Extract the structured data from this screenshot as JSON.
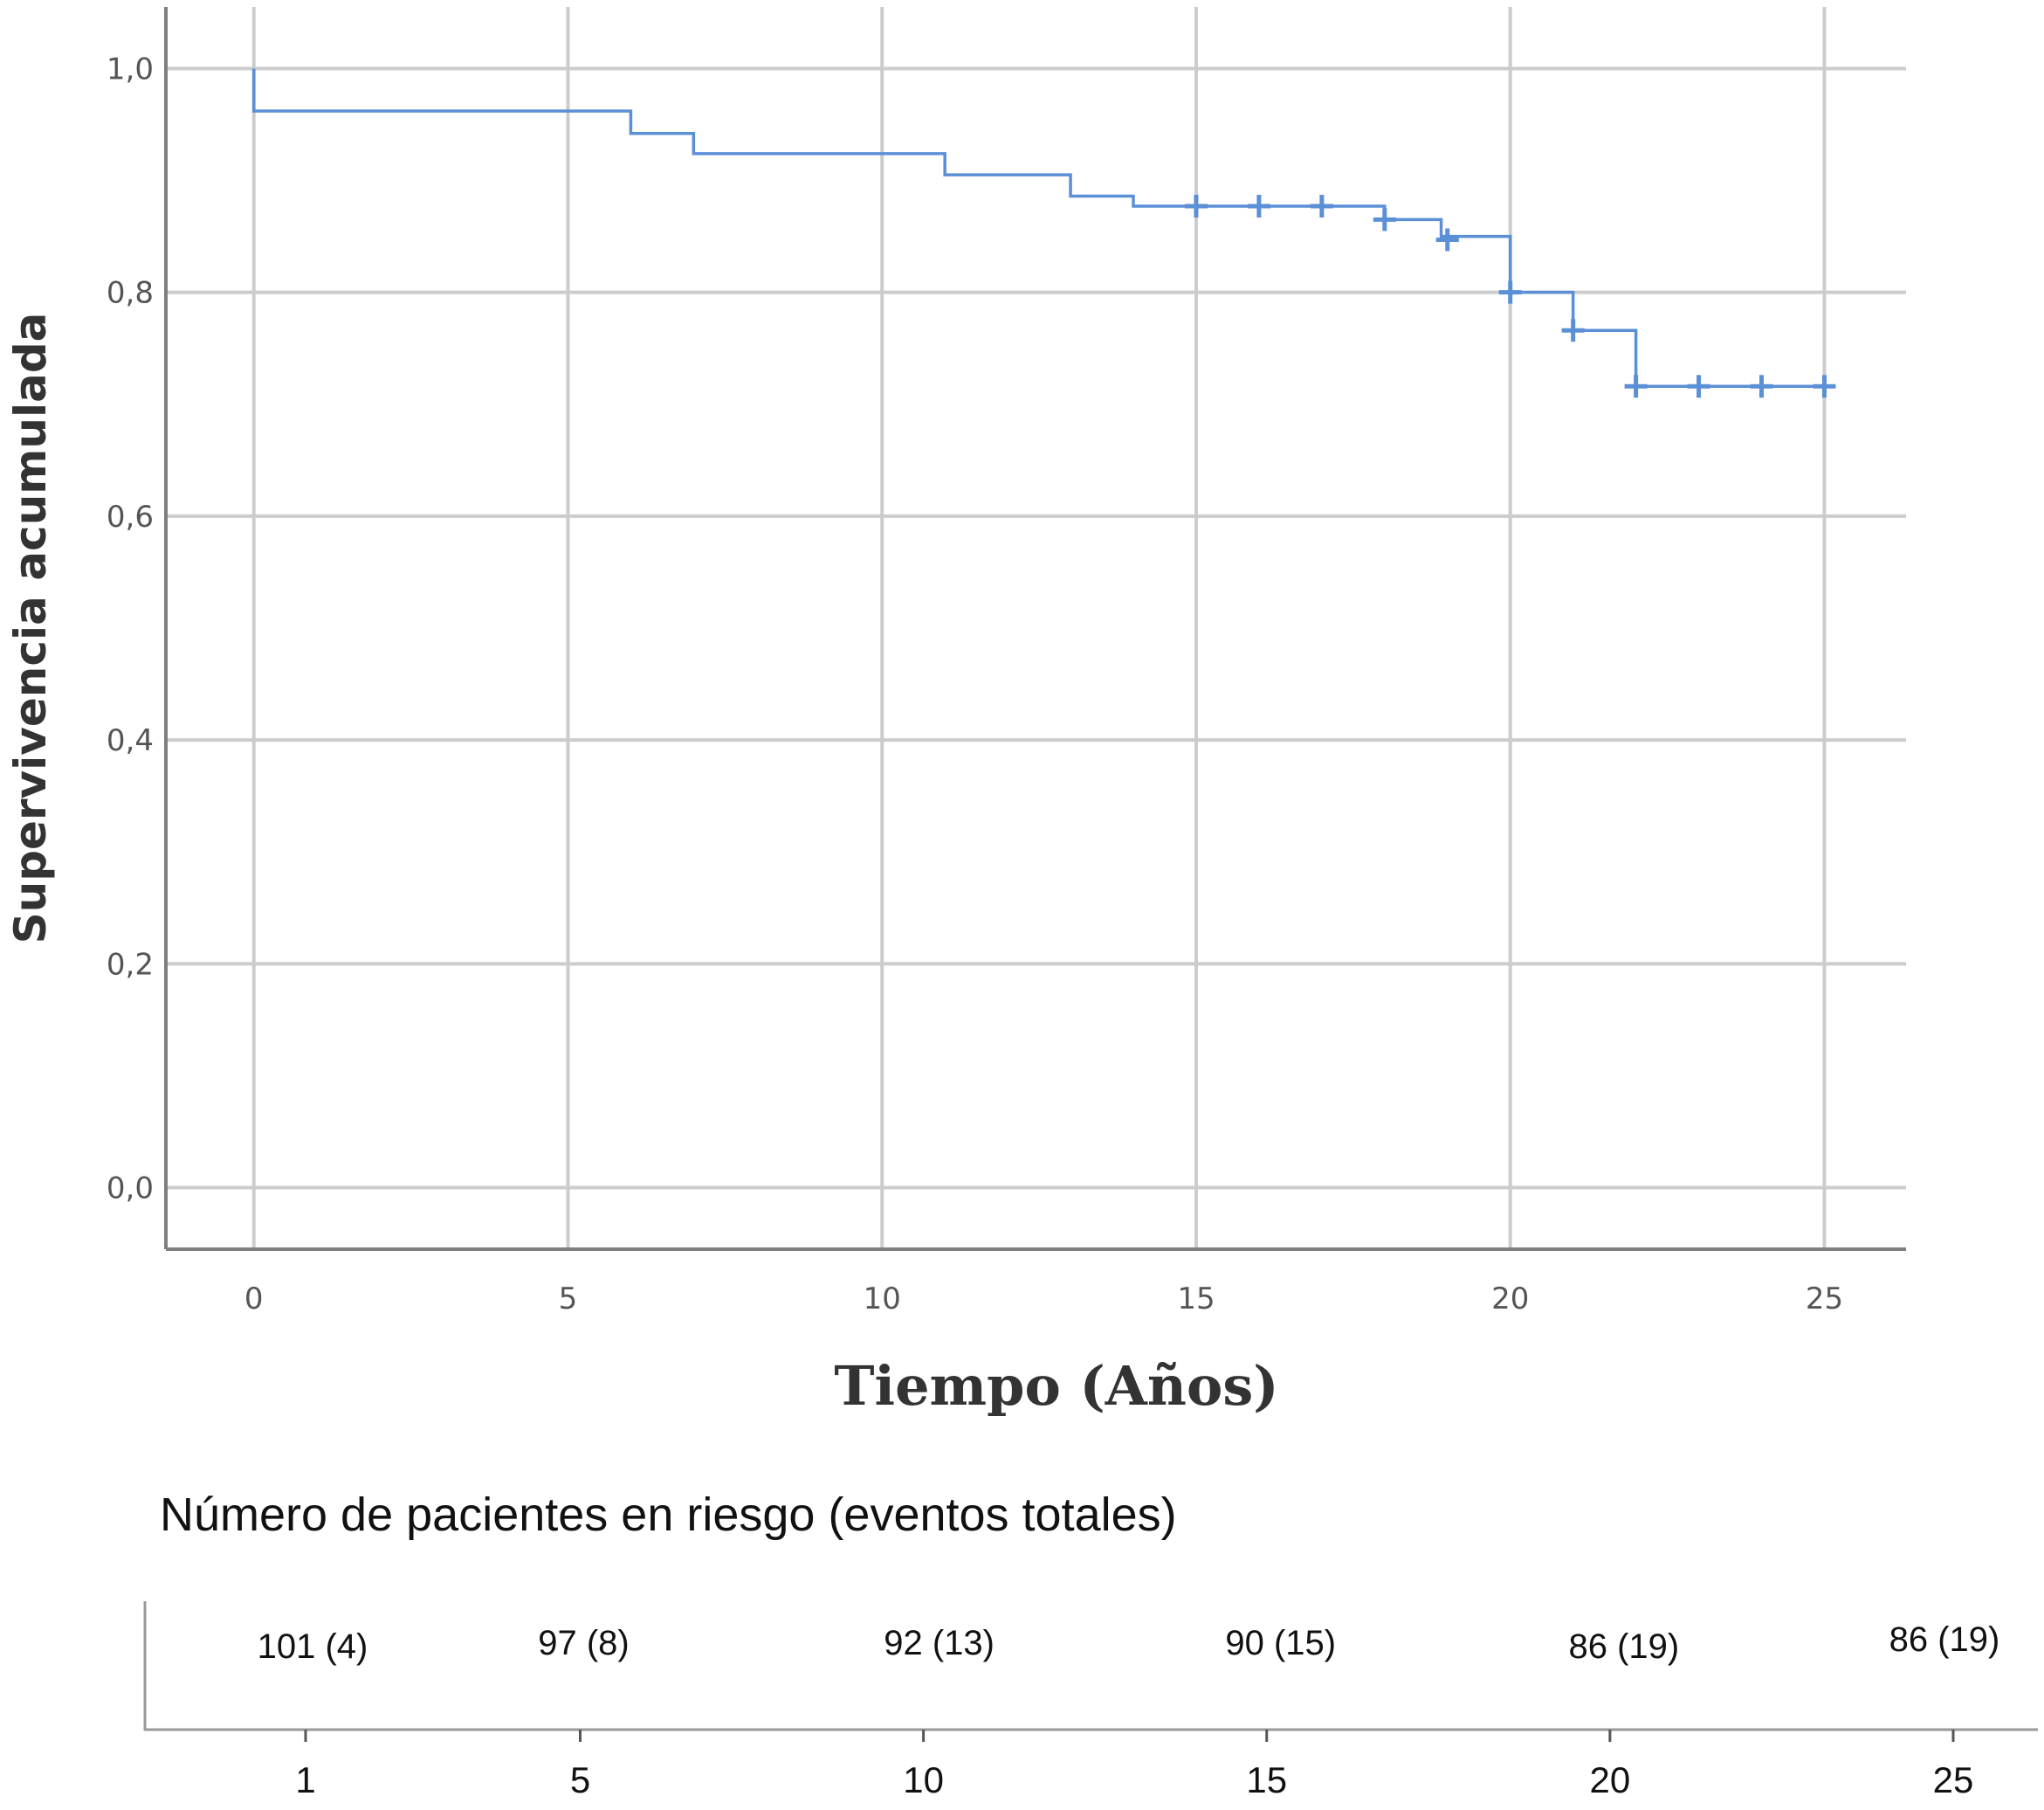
{
  "chart_data": [
    {
      "type": "line",
      "subtype": "kaplan-meier-step",
      "title": "",
      "xlabel": "Tiempo (Años)",
      "ylabel": "Supervivencia acumulada",
      "xlim": [
        -1.4,
        26.3
      ],
      "ylim": [
        -0.055,
        1.055
      ],
      "x_ticks": [
        0,
        5,
        10,
        15,
        20,
        25
      ],
      "x_tick_labels": [
        "0",
        "5",
        "10",
        "15",
        "20",
        "25"
      ],
      "y_ticks": [
        0.0,
        0.2,
        0.4,
        0.6,
        0.8,
        1.0
      ],
      "y_tick_labels": [
        "0,0",
        "0,2",
        "0,4",
        "0,6",
        "0,8",
        "1,0"
      ],
      "grid": true,
      "color": "#5b8fd6",
      "series": [
        {
          "steps": [
            [
              0,
              1.0
            ],
            [
              0,
              0.962
            ],
            [
              6,
              0.942
            ],
            [
              7,
              0.924
            ],
            [
              11,
              0.905
            ],
            [
              13,
              0.886
            ],
            [
              14,
              0.877
            ],
            [
              18,
              0.865
            ],
            [
              18.9,
              0.85
            ],
            [
              20,
              0.8
            ],
            [
              21,
              0.766
            ],
            [
              22,
              0.716
            ],
            [
              25,
              0.716
            ]
          ],
          "censored": [
            [
              15,
              0.877
            ],
            [
              16,
              0.877
            ],
            [
              17,
              0.877
            ],
            [
              18,
              0.865
            ],
            [
              19,
              0.847
            ],
            [
              20,
              0.8
            ],
            [
              21,
              0.766
            ],
            [
              22,
              0.716
            ],
            [
              23,
              0.716
            ],
            [
              24,
              0.716
            ],
            [
              25,
              0.716
            ]
          ]
        }
      ]
    },
    {
      "type": "table",
      "title": "Número de pacientes en riesgo (eventos totales)",
      "x_ticks": [
        1,
        5,
        10,
        15,
        20,
        25
      ],
      "x_tick_labels": [
        "1",
        "5",
        "10",
        "15",
        "20",
        "25"
      ],
      "xlim": [
        -1.4,
        26.3
      ],
      "entries": [
        {
          "x": 1,
          "label": "101 (4)"
        },
        {
          "x": 5,
          "label": "97 (8)"
        },
        {
          "x": 10,
          "label": "92 (13)"
        },
        {
          "x": 15,
          "label": "90 (15)"
        },
        {
          "x": 20,
          "label": "86 (19)"
        },
        {
          "x": 25,
          "label": "86 (19)"
        }
      ]
    }
  ]
}
